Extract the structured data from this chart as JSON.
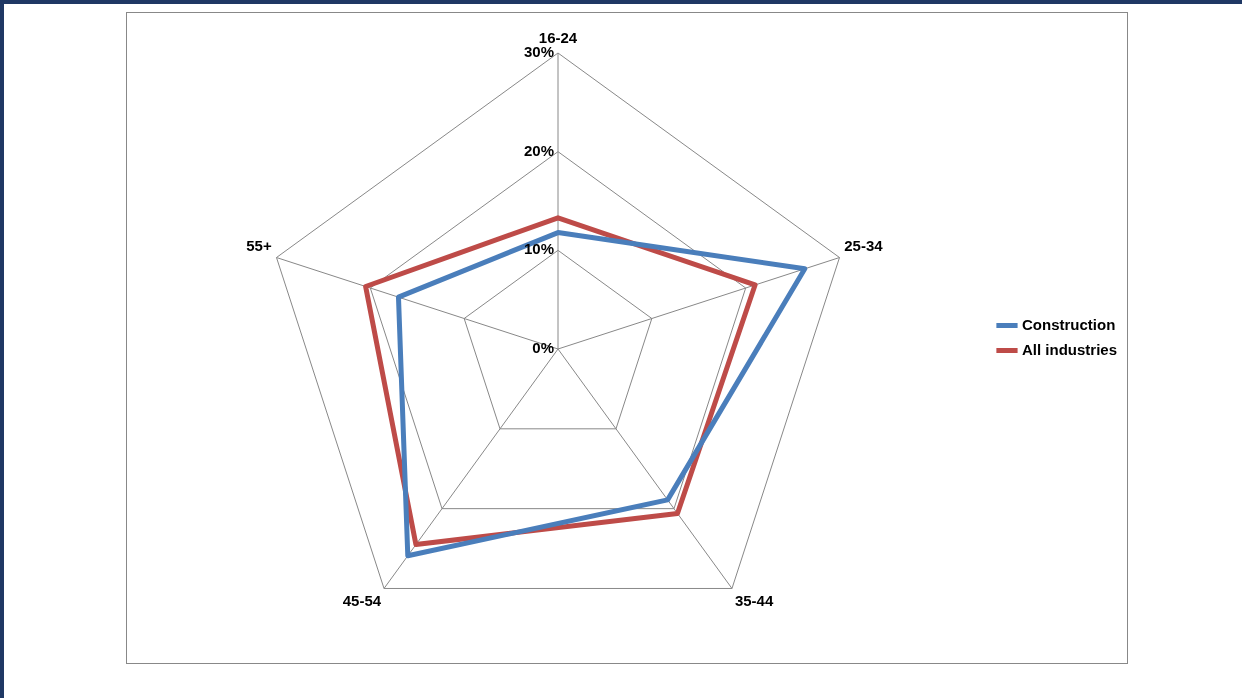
{
  "chart_data": {
    "type": "radar",
    "categories": [
      "16-24",
      "25-34",
      "35-44",
      "45-54",
      "55+"
    ],
    "series": [
      {
        "name": "Construction",
        "color": "#4a7ebb",
        "values": [
          11.8,
          26.3,
          18.9,
          25.9,
          17
        ]
      },
      {
        "name": "All industries",
        "color": "#be4b48",
        "values": [
          13.3,
          21,
          20.6,
          24.5,
          20.5
        ]
      }
    ],
    "ylim": [
      0,
      30
    ],
    "yticks": [
      {
        "value": 0,
        "label": "0%"
      },
      {
        "value": 10,
        "label": "10%"
      },
      {
        "value": 20,
        "label": "20%"
      },
      {
        "value": 30,
        "label": "30%"
      }
    ],
    "grid": true,
    "legend": "right",
    "marker": "none",
    "line_style": "solid"
  }
}
